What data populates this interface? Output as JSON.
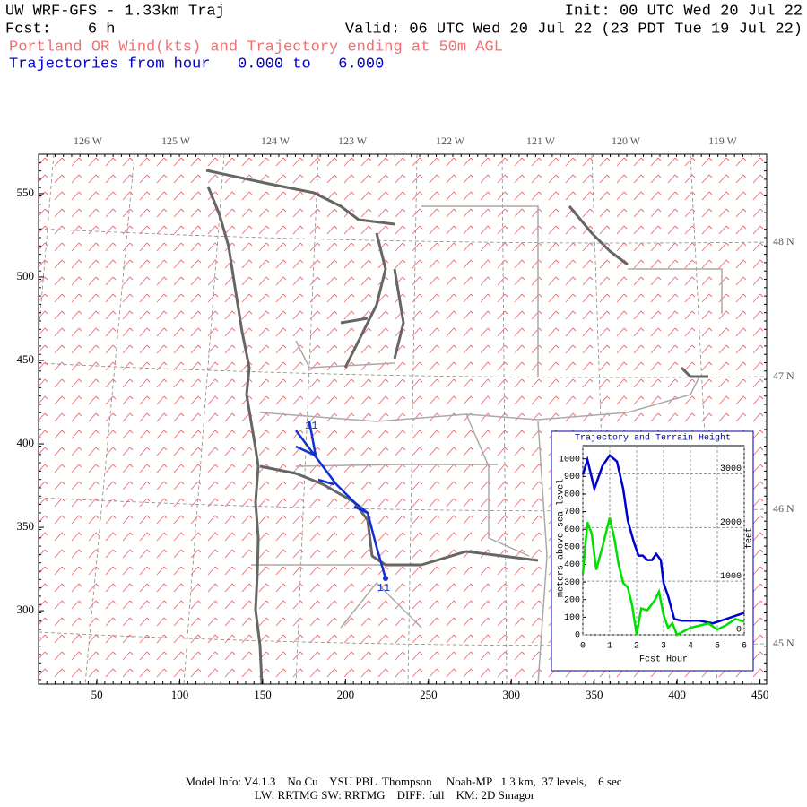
{
  "header": {
    "title": "UW WRF-GFS - 1.33km Traj",
    "init": "Init: 00 UTC Wed 20 Jul 22",
    "fcst": "Fcst:    6 h",
    "valid": "Valid: 06 UTC Wed 20 Jul 22 (23 PDT Tue 19 Jul 22)",
    "subtitle": "Portland OR Wind(kts) and Trajectory ending at 50m AGL",
    "traj_range": "Trajectories from hour   0.000 to   6.000"
  },
  "map": {
    "xlim": [
      14.8,
      454
    ],
    "ylim": [
      256,
      573.6
    ],
    "xticks": [
      50,
      100,
      150,
      200,
      250,
      300,
      350,
      400,
      450
    ],
    "yticks": [
      300,
      350,
      400,
      450,
      500,
      550
    ],
    "lon_labels": [
      "126 W",
      "125 W",
      "124 W",
      "123 W",
      "122 W",
      "121 W",
      "120 W",
      "119 W"
    ],
    "lat_labels": [
      "48 N",
      "47 N",
      "46 N",
      "45 N"
    ],
    "trajectory_labels": [
      "11",
      "11"
    ]
  },
  "inset": {
    "type": "line",
    "title": "Trajectory and Terrain Height",
    "y_label": "meters above sea level",
    "y2_label": "feet",
    "x_label": "Fcst Hour",
    "xlim": [
      0,
      6
    ],
    "xticks": [
      0,
      1,
      2,
      3,
      4,
      5,
      6
    ],
    "ylim": [
      0,
      1075
    ],
    "yticks": [
      0,
      100,
      200,
      300,
      400,
      500,
      600,
      700,
      800,
      900,
      1000
    ],
    "y2lim": [
      0,
      3527
    ],
    "y2ticks": [
      0,
      1000,
      2000,
      3000
    ],
    "series": [
      {
        "color": "#0000cc",
        "x": [
          0,
          0.17,
          0.43,
          0.73,
          1.0,
          1.27,
          1.5,
          1.67,
          1.9,
          2.07,
          2.23,
          2.4,
          2.57,
          2.73,
          2.9,
          3.0,
          3.17,
          3.4,
          3.67,
          4.33,
          4.83,
          5.33,
          6.0
        ],
        "values": [
          910,
          995,
          830,
          960,
          1020,
          985,
          830,
          650,
          525,
          450,
          450,
          425,
          425,
          460,
          425,
          295,
          220,
          90,
          80,
          80,
          65,
          90,
          125
        ]
      },
      {
        "color": "#00dd00",
        "x": [
          0,
          0.17,
          0.33,
          0.5,
          0.73,
          1.0,
          1.17,
          1.33,
          1.5,
          1.67,
          1.83,
          2.0,
          2.17,
          2.4,
          2.67,
          2.83,
          3.0,
          3.17,
          3.33,
          3.5,
          4.0,
          4.67,
          5.0,
          5.33,
          5.67,
          6.0
        ],
        "values": [
          345,
          640,
          575,
          370,
          500,
          665,
          550,
          400,
          295,
          270,
          170,
          0,
          150,
          140,
          195,
          245,
          115,
          40,
          65,
          0,
          40,
          65,
          30,
          55,
          90,
          75
        ]
      }
    ]
  },
  "footer": {
    "line1": "Model Info: V4.1.3    No Cu    YSU PBL  Thompson     Noah-MP   1.3 km,  37 levels,    6 sec",
    "line2": "LW: RRTMG SW: RRTMG    DIFF: full    KM: 2D Smagor"
  }
}
